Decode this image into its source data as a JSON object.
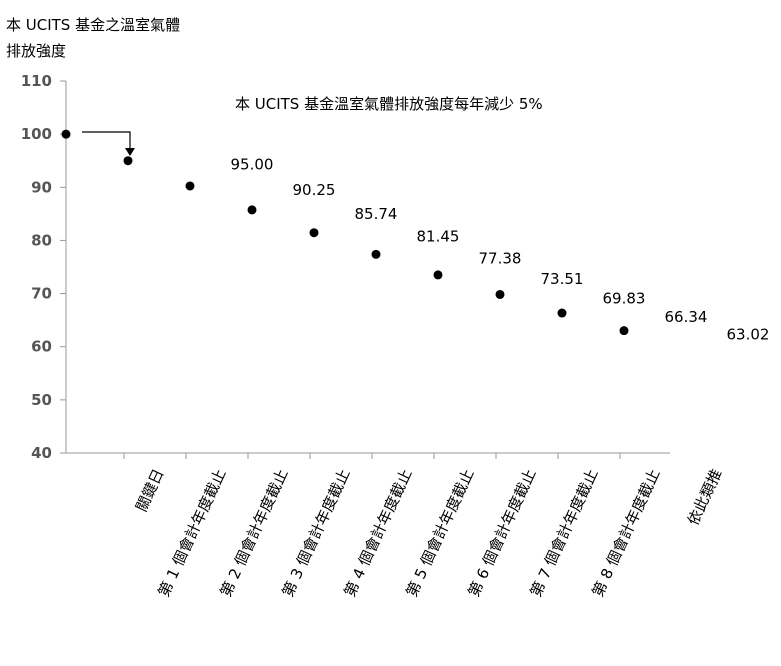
{
  "chart_data": {
    "type": "scatter",
    "title_lines": [
      "本 UCITS 基金之溫室氣體",
      "排放強度"
    ],
    "annotation": "本 UCITS 基金溫室氣體排放強度每年減少 5%",
    "categories": [
      "關鍵日",
      "第 1 個會計年度截止",
      "第 2 個會計年度截止",
      "第 3 個會計年度截止",
      "第 4 個會計年度截止",
      "第 5 個會計年度截止",
      "第 6 個會計年度截止",
      "第 7 個會計年度截止",
      "第 8 個會計年度截止",
      "依此類推"
    ],
    "values": [
      100,
      95,
      90.25,
      85.74,
      81.45,
      77.38,
      73.51,
      69.83,
      66.34,
      63.02
    ],
    "value_labels": [
      null,
      "95.00",
      "90.25",
      "85.74",
      "81.45",
      "77.38",
      "73.51",
      "69.83",
      "66.34",
      "63.02"
    ],
    "color": "#000000",
    "ylim": [
      40,
      110
    ],
    "yticks": [
      40,
      50,
      60,
      70,
      80,
      90,
      100,
      110
    ],
    "grid": false
  }
}
